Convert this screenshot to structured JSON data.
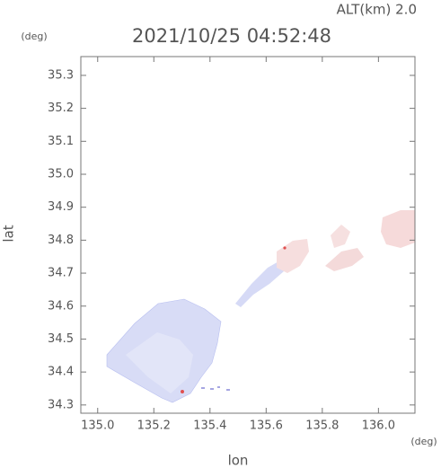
{
  "chart_data": {
    "type": "map",
    "title": "2021/10/25 04:52:48",
    "subtitle": "ALT(km) 2.0",
    "x_label": "lon",
    "y_label": "lat",
    "x_unit": "(deg)",
    "y_unit": "(deg)",
    "xlim": [
      134.94,
      136.13
    ],
    "ylim": [
      34.275,
      35.357
    ],
    "xticks": [
      {
        "value": 135,
        "label": "135.0"
      },
      135.2,
      135.4,
      135.6,
      135.8,
      {
        "value": 136,
        "label": "136.0"
      }
    ],
    "yticks": [
      34.3,
      34.4,
      34.5,
      34.6,
      34.7,
      34.8,
      34.9,
      {
        "value": 35,
        "label": "35.0"
      },
      35.1,
      35.2,
      35.3
    ]
  }
}
